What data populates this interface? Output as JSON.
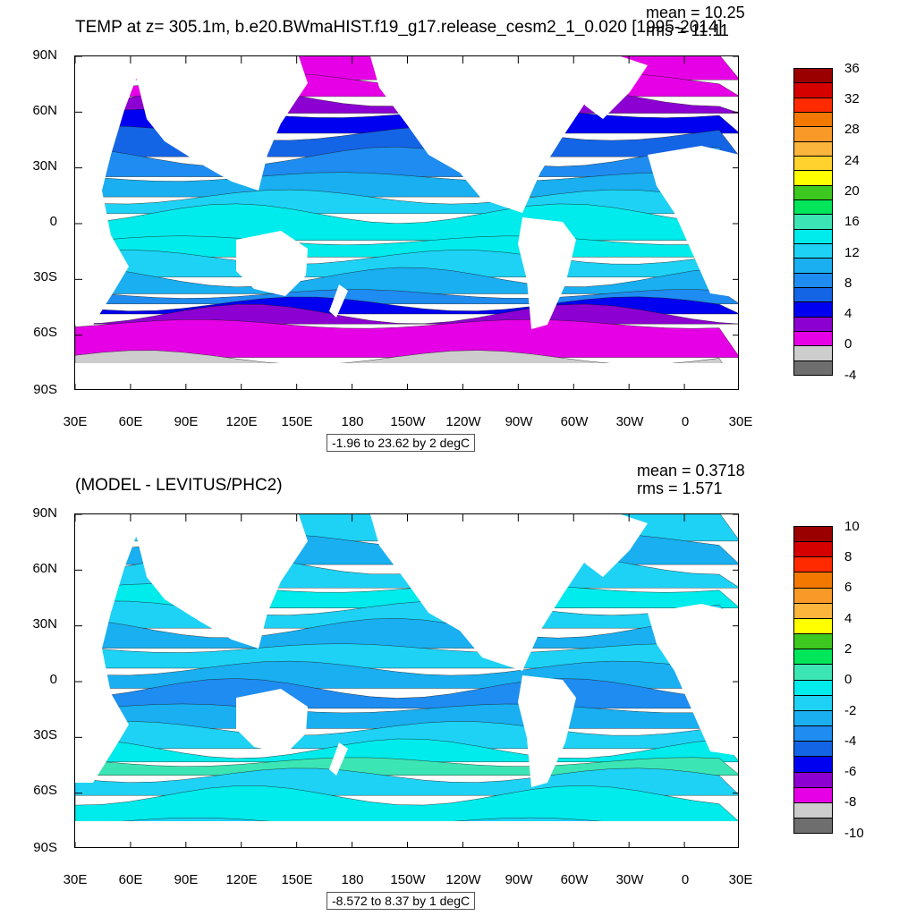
{
  "figures": [
    {
      "title": "TEMP at z= 305.1m, b.e20.BWmaHIST.f19_g17.release_cesm2_1_0.020 [1995-2014]",
      "mean_text": "mean = 10.25",
      "rms_text": "rms = 11.11",
      "range_text": "-1.96 to 23.62 by 2 degC",
      "colorbar": {
        "labels": [
          "36",
          "32",
          "28",
          "24",
          "20",
          "16",
          "12",
          "8",
          "4",
          "0",
          "-4"
        ],
        "colors": [
          "#9b0000",
          "#d50000",
          "#ff2a00",
          "#f27800",
          "#f99a28",
          "#fbb43c",
          "#ffd22d",
          "#ffff00",
          "#3cc81e",
          "#00e65a",
          "#3ce6b4",
          "#00ebeb",
          "#1ed2f5",
          "#19aff0",
          "#1e8cf0",
          "#1464e6",
          "#0000f0",
          "#8c00d2",
          "#e600e6",
          "#cdcdcd",
          "#6e6e6e"
        ]
      }
    },
    {
      "title": "(MODEL - LEVITUS/PHC2)",
      "mean_text": "mean = 0.3718",
      "rms_text": "rms = 1.571",
      "range_text": "-8.572 to 8.37 by 1 degC",
      "colorbar": {
        "labels": [
          "10",
          "8",
          "6",
          "4",
          "2",
          "0",
          "-2",
          "-4",
          "-6",
          "-8",
          "-10"
        ],
        "colors": [
          "#9b0000",
          "#d50000",
          "#ff2a00",
          "#f27800",
          "#f99a28",
          "#fbb43c",
          "#ffff00",
          "#3cc81e",
          "#00e65a",
          "#3ce6b4",
          "#00ebeb",
          "#1ed2f5",
          "#19aff0",
          "#1e8cf0",
          "#1464e6",
          "#0000f0",
          "#8c00d2",
          "#e600e6",
          "#cdcdcd",
          "#6e6e6e"
        ]
      }
    }
  ],
  "axes": {
    "lat_labels": [
      "90N",
      "60N",
      "30N",
      "0",
      "30S",
      "60S",
      "90S"
    ],
    "lon_labels": [
      "30E",
      "60E",
      "90E",
      "120E",
      "150E",
      "180",
      "150W",
      "120W",
      "90W",
      "60W",
      "30W",
      "0",
      "30E"
    ]
  },
  "chart_data": [
    {
      "type": "heatmap",
      "variable": "TEMP",
      "depth": "305.1m",
      "units": "degC",
      "mean": 10.25,
      "rms": 11.11,
      "data_min": -1.96,
      "data_max": 23.62,
      "contour_interval": 2,
      "color_levels": [
        -4,
        -2,
        0,
        2,
        4,
        6,
        8,
        10,
        12,
        14,
        16,
        18,
        20,
        22,
        24,
        26,
        28,
        30,
        32,
        34,
        36
      ],
      "x_range": [
        30,
        390
      ],
      "y_range": [
        -90,
        90
      ]
    },
    {
      "type": "heatmap",
      "variable": "MODEL - LEVITUS/PHC2",
      "units": "degC",
      "mean": 0.3718,
      "rms": 1.571,
      "data_min": -8.572,
      "data_max": 8.37,
      "contour_interval": 1,
      "color_levels": [
        -10,
        -9,
        -8,
        -7,
        -6,
        -5,
        -4,
        -3,
        -2,
        -1,
        0,
        1,
        2,
        3,
        4,
        5,
        6,
        7,
        8,
        9,
        10
      ],
      "x_range": [
        30,
        390
      ],
      "y_range": [
        -90,
        90
      ]
    }
  ]
}
